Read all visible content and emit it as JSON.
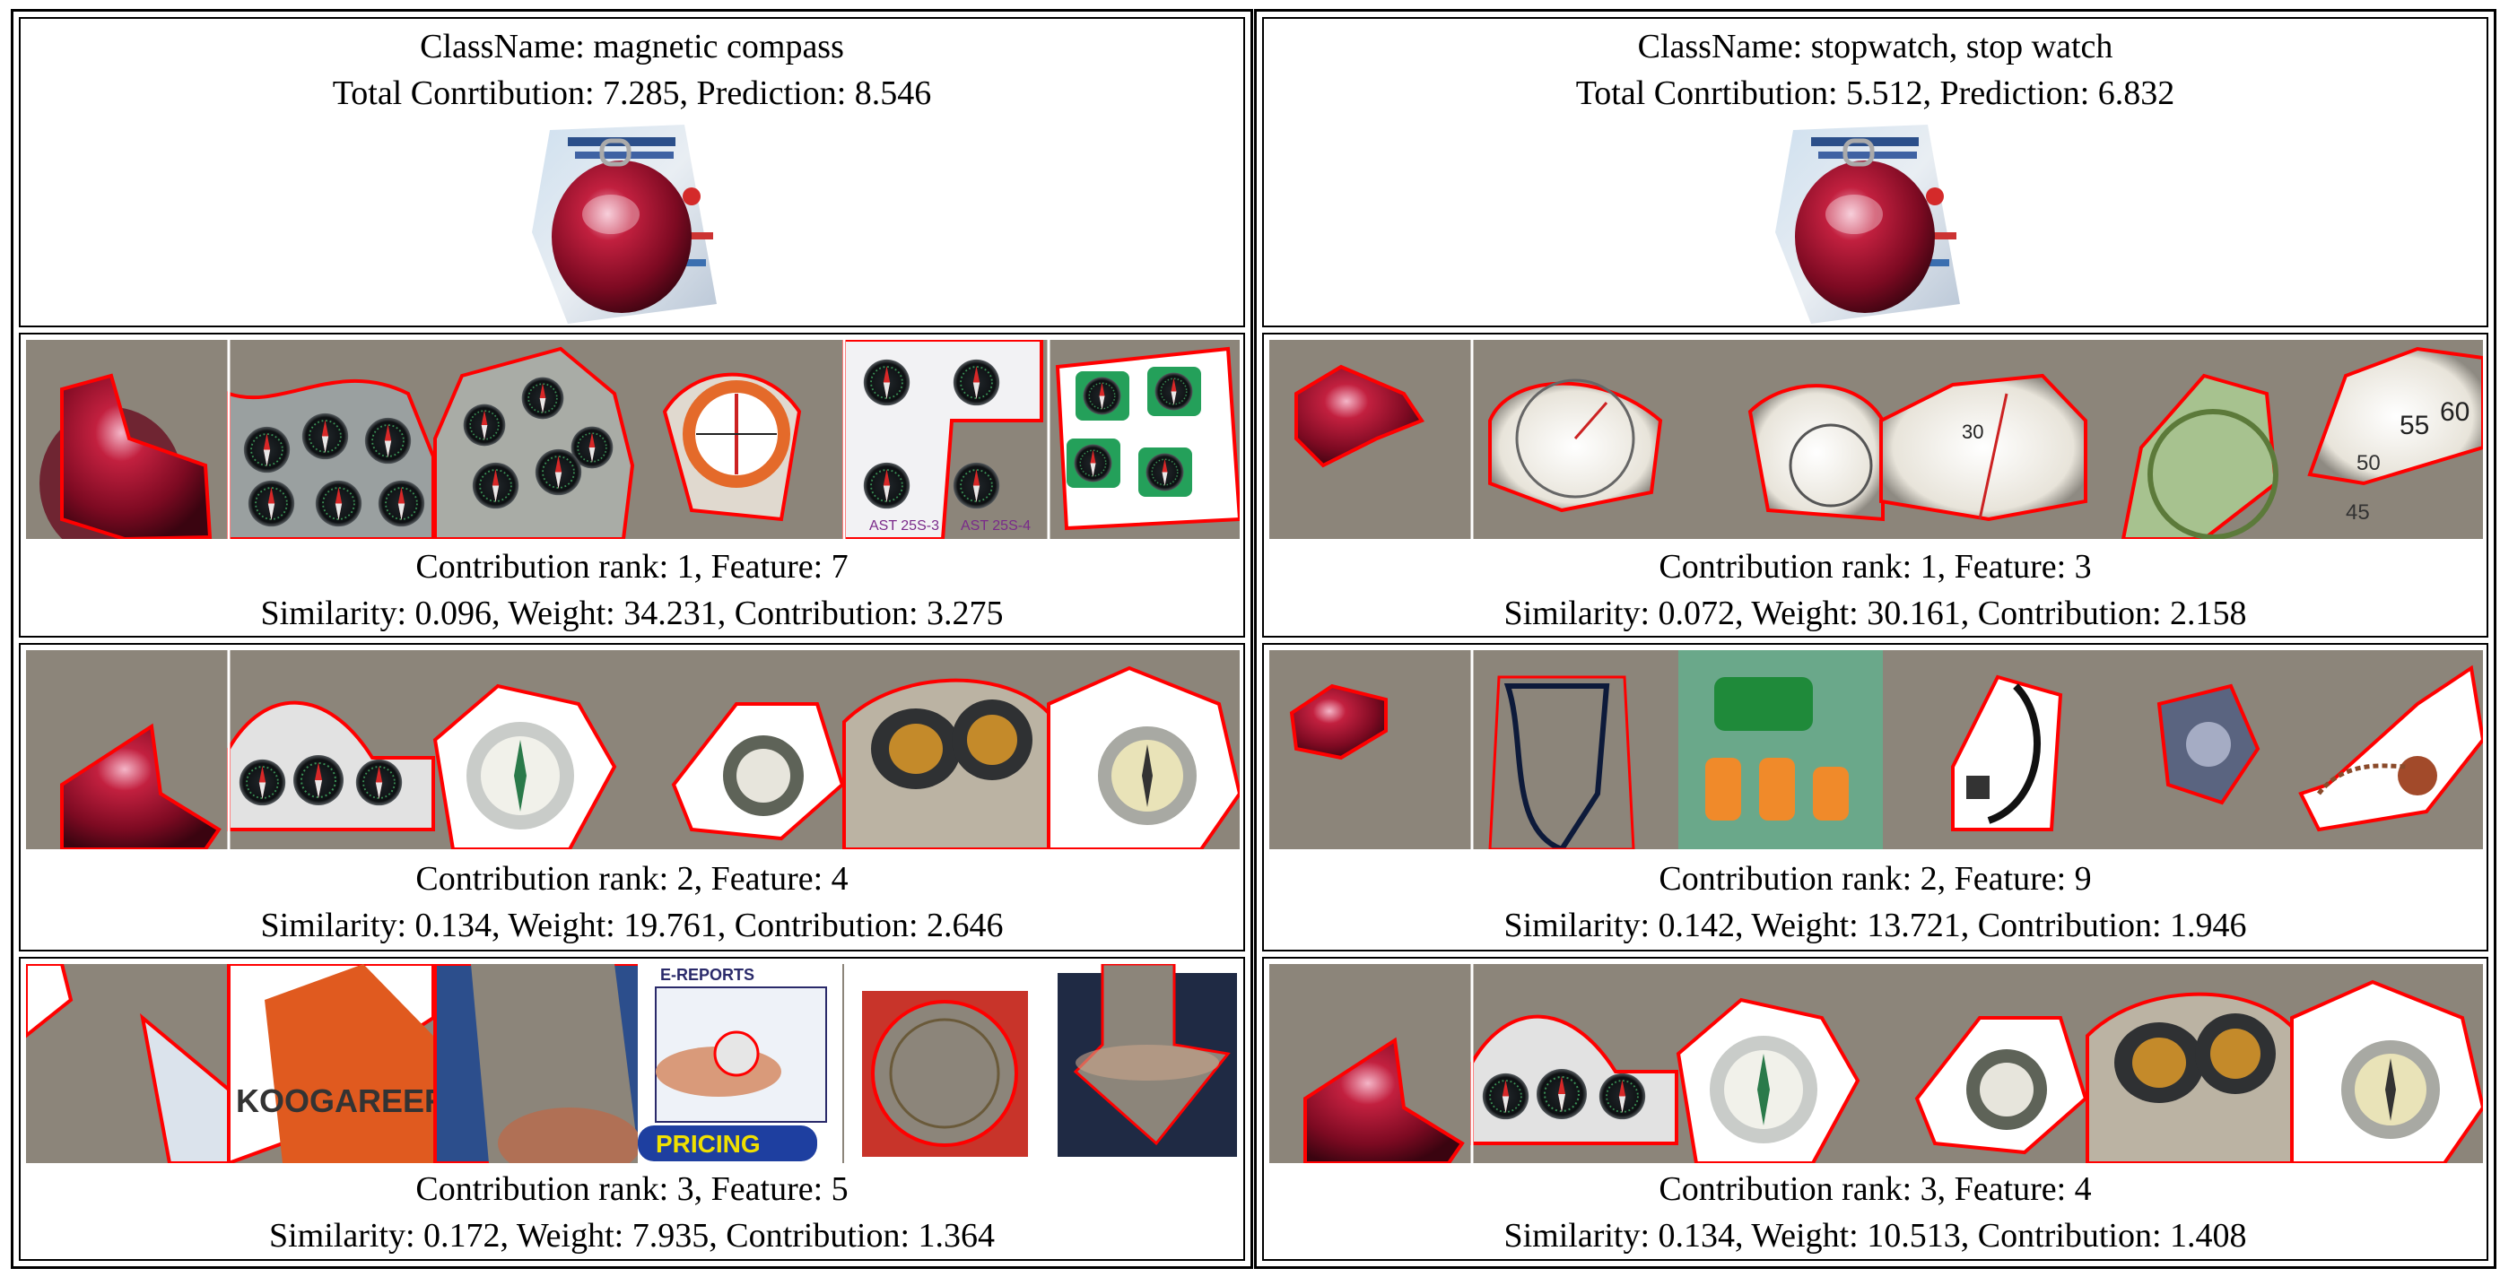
{
  "panels": [
    {
      "class_name": "ClassName: magnetic compass",
      "totals": "Total Conrtibution: 7.285, Prediction: 8.546",
      "rows": [
        {
          "rank_line": "Contribution rank: 1, Feature: 7",
          "stats_line": "Similarity: 0.096, Weight: 34.231, Contribution: 3.275"
        },
        {
          "rank_line": "Contribution rank: 2, Feature: 4",
          "stats_line": "Similarity: 0.134, Weight: 19.761, Contribution: 2.646"
        },
        {
          "rank_line": "Contribution rank: 3, Feature: 5",
          "stats_line": "Similarity: 0.172, Weight: 7.935, Contribution: 1.364"
        }
      ],
      "prototype_labels": {
        "row3_banner_top": "E-REPORTS",
        "row3_banner_bottom": "PRICING",
        "row3_text": "KOOGAREER",
        "row1_tag_a": "AST 25S-3",
        "row1_tag_b": "AST 25S-4"
      }
    },
    {
      "class_name": "ClassName: stopwatch, stop watch",
      "totals": "Total Conrtibution: 5.512, Prediction: 6.832",
      "rows": [
        {
          "rank_line": "Contribution rank: 1, Feature: 3",
          "stats_line": "Similarity: 0.072, Weight: 30.161, Contribution: 2.158"
        },
        {
          "rank_line": "Contribution rank: 2, Feature: 9",
          "stats_line": "Similarity: 0.142, Weight: 13.721, Contribution: 1.946"
        },
        {
          "rank_line": "Contribution rank: 3, Feature: 4",
          "stats_line": "Similarity: 0.134, Weight: 10.513, Contribution: 1.408"
        }
      ],
      "prototype_labels": {
        "dial_a": "55",
        "dial_b": "60",
        "dial_c": "50",
        "dial_d": "45",
        "dial_e": "30"
      }
    }
  ],
  "colors": {
    "outline": "#ff0000",
    "mask": "#8c857a",
    "border": "#000000"
  }
}
